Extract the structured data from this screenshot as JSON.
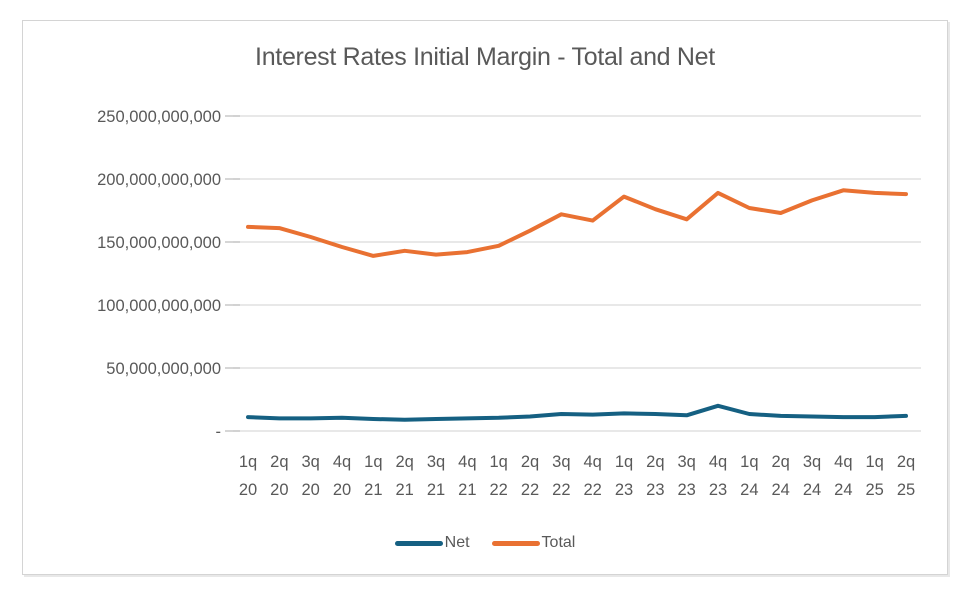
{
  "chart_data": {
    "type": "line",
    "title": "Interest Rates Initial Margin - Total and Net",
    "categories": [
      "1q 20",
      "2q 20",
      "3q 20",
      "4q 20",
      "1q 21",
      "2q 21",
      "3q 21",
      "4q 21",
      "1q 22",
      "2q 22",
      "3q 22",
      "4q 22",
      "1q 23",
      "2q 23",
      "3q 23",
      "4q 23",
      "1q 24",
      "2q 24",
      "3q 24",
      "4q 24",
      "1q 25",
      "2q 25"
    ],
    "series": [
      {
        "name": "Net",
        "color": "#156082",
        "values": [
          11000000000,
          10000000000,
          10000000000,
          10500000000,
          9500000000,
          9000000000,
          9500000000,
          10000000000,
          10500000000,
          11500000000,
          13500000000,
          13000000000,
          14000000000,
          13500000000,
          12500000000,
          20000000000,
          13500000000,
          12000000000,
          11500000000,
          11000000000,
          11000000000,
          12000000000
        ]
      },
      {
        "name": "Total",
        "color": "#E97132",
        "values": [
          162000000000,
          161000000000,
          154000000000,
          146000000000,
          139000000000,
          143000000000,
          140000000000,
          142000000000,
          147000000000,
          159000000000,
          172000000000,
          167000000000,
          186000000000,
          176000000000,
          168000000000,
          189000000000,
          177000000000,
          173000000000,
          183000000000,
          191000000000,
          189000000000,
          188000000000
        ]
      }
    ],
    "ylim": [
      0,
      250000000000
    ],
    "ytick_step": 50000000000,
    "ytick_labels": [
      "-",
      "50,000,000,000",
      "100,000,000,000",
      "150,000,000,000",
      "200,000,000,000",
      "250,000,000,000"
    ],
    "grid": true,
    "legend_position": "bottom"
  },
  "colors": {
    "grid": "#d9d9d9",
    "tick": "#bfbfbf",
    "axis_text": "#595959",
    "title_text": "#595959",
    "frame_border": "#d4d4d4"
  }
}
